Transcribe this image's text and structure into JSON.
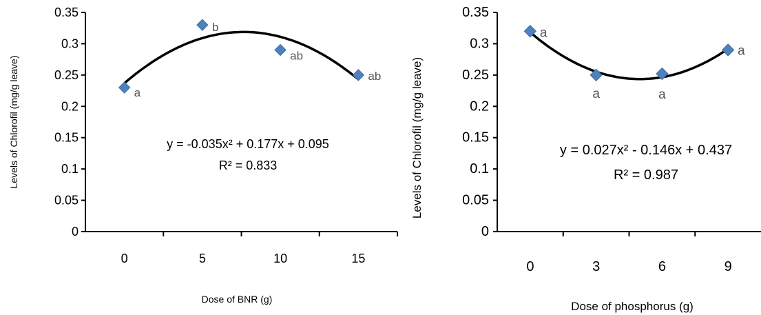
{
  "marker_color": "#4F81BD",
  "curve_color": "#000000",
  "chart_data": [
    {
      "type": "scatter",
      "categories": [
        "0",
        "5",
        "10",
        "15"
      ],
      "values": [
        0.23,
        0.33,
        0.29,
        0.25
      ],
      "point_labels": [
        "a",
        "b",
        "ab",
        "ab"
      ],
      "trendline": "polynomial-2",
      "equation": "y = -0.035x² + 0.177x + 0.095",
      "r_squared": "R² = 0.833",
      "ylim": [
        0,
        0.35
      ],
      "yticks": [
        "0",
        "0.05",
        "0.1",
        "0.15",
        "0.2",
        "0.25",
        "0.3",
        "0.35"
      ],
      "xlabel": "Dose of BNR (g)",
      "ylabel": "Levels of Chlorofil  (mg/g leave)",
      "grid": false
    },
    {
      "type": "scatter",
      "categories": [
        "0",
        "3",
        "6",
        "9"
      ],
      "values": [
        0.32,
        0.25,
        0.252,
        0.29
      ],
      "point_labels": [
        "a",
        "a",
        "a",
        "a"
      ],
      "trendline": "polynomial-2",
      "equation": "y = 0.027x² - 0.146x + 0.437",
      "r_squared": "R² = 0.987",
      "ylim": [
        0,
        0.35
      ],
      "yticks": [
        "0",
        "0.05",
        "0.1",
        "0.15",
        "0.2",
        "0.25",
        "0.3",
        "0.35"
      ],
      "xlabel": "Dose of phosphorus  (g)",
      "ylabel": "Levels of Chlorofil  (mg/g leave)",
      "grid": false
    }
  ]
}
